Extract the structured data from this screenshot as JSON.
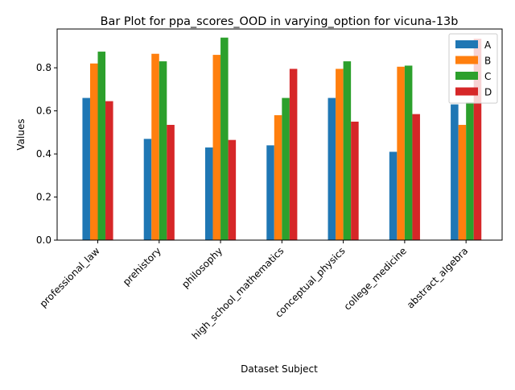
{
  "chart_data": {
    "type": "bar",
    "title": "Bar Plot for ppa_scores_OOD in varying_option for vicuna-13b",
    "xlabel": "Dataset Subject",
    "ylabel": "Values",
    "ylim": [
      0,
      0.98
    ],
    "yticks": [
      0.0,
      0.2,
      0.4,
      0.6,
      0.8
    ],
    "ytick_labels": [
      "0.0",
      "0.2",
      "0.4",
      "0.6",
      "0.8"
    ],
    "grid": false,
    "legend_position": "top-right",
    "categories": [
      "professional_law",
      "prehistory",
      "philosophy",
      "high_school_mathematics",
      "conceptual_physics",
      "college_medicine",
      "abstract_algebra"
    ],
    "series": [
      {
        "name": "A",
        "color": "#1f77b4",
        "values": [
          0.66,
          0.47,
          0.43,
          0.44,
          0.66,
          0.41,
          0.63
        ]
      },
      {
        "name": "B",
        "color": "#ff7f0e",
        "values": [
          0.82,
          0.865,
          0.86,
          0.58,
          0.795,
          0.805,
          0.535
        ]
      },
      {
        "name": "C",
        "color": "#2ca02c",
        "values": [
          0.875,
          0.83,
          0.94,
          0.66,
          0.83,
          0.81,
          0.64
        ]
      },
      {
        "name": "D",
        "color": "#d62728",
        "values": [
          0.645,
          0.535,
          0.465,
          0.795,
          0.55,
          0.585,
          0.935
        ]
      }
    ]
  }
}
